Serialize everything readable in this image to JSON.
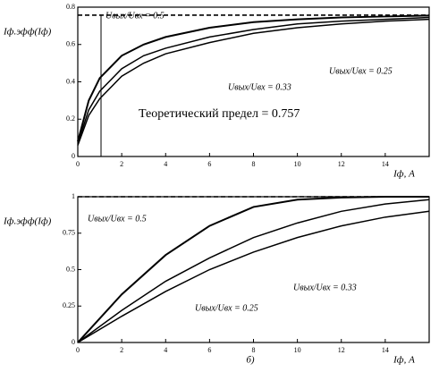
{
  "chart_data": [
    {
      "type": "line",
      "y_label": "Iф.эфф(Iф)",
      "x_label": "Iф, А",
      "xlim": [
        0,
        16
      ],
      "xticks": [
        0,
        2,
        4,
        6,
        8,
        10,
        12,
        14
      ],
      "ylim": [
        0,
        0.8
      ],
      "yticks": [
        0,
        0.2,
        0.4,
        0.6,
        0.8
      ],
      "x": [
        0,
        0.5,
        1,
        2,
        3,
        4,
        6,
        8,
        10,
        12,
        14,
        16
      ],
      "series": [
        {
          "name": "Uвых/Uвх = 0.5",
          "color": "#000000",
          "values": [
            0.08,
            0.3,
            0.42,
            0.54,
            0.6,
            0.64,
            0.69,
            0.72,
            0.735,
            0.745,
            0.75,
            0.755
          ]
        },
        {
          "name": "Uвых/Uвх = 0.33",
          "color": "#000000",
          "values": [
            0.07,
            0.25,
            0.35,
            0.47,
            0.54,
            0.58,
            0.64,
            0.68,
            0.71,
            0.725,
            0.735,
            0.745
          ]
        },
        {
          "name": "Uвых/Uвх = 0.25",
          "color": "#000000",
          "values": [
            0.06,
            0.22,
            0.31,
            0.43,
            0.5,
            0.55,
            0.61,
            0.66,
            0.69,
            0.71,
            0.725,
            0.735
          ]
        }
      ],
      "reference_line": {
        "value": 0.757,
        "label": "Теоретический предел = 0.757"
      }
    },
    {
      "type": "line",
      "y_label": "Iф.эфф(Iф)",
      "x_label": "Iф, А",
      "panel_label": "б)",
      "xlim": [
        0,
        16
      ],
      "xticks": [
        0,
        2,
        4,
        6,
        8,
        10,
        12,
        14
      ],
      "ylim": [
        0,
        1
      ],
      "yticks": [
        0,
        0.25,
        0.5,
        0.75,
        1
      ],
      "x": [
        0,
        2,
        4,
        6,
        8,
        10,
        12,
        14,
        16
      ],
      "series": [
        {
          "name": "Uвых/Uвх = 0.5",
          "color": "#000000",
          "values": [
            0,
            0.33,
            0.6,
            0.8,
            0.93,
            0.98,
            0.995,
            1.0,
            1.0
          ]
        },
        {
          "name": "Uвых/Uвх = 0.33",
          "color": "#000000",
          "values": [
            0,
            0.22,
            0.42,
            0.58,
            0.72,
            0.82,
            0.9,
            0.95,
            0.98
          ]
        },
        {
          "name": "Uвых/Uвх = 0.25",
          "color": "#000000",
          "values": [
            0,
            0.18,
            0.35,
            0.5,
            0.62,
            0.72,
            0.8,
            0.86,
            0.9
          ]
        }
      ],
      "reference_line": {
        "value": 1
      }
    }
  ]
}
